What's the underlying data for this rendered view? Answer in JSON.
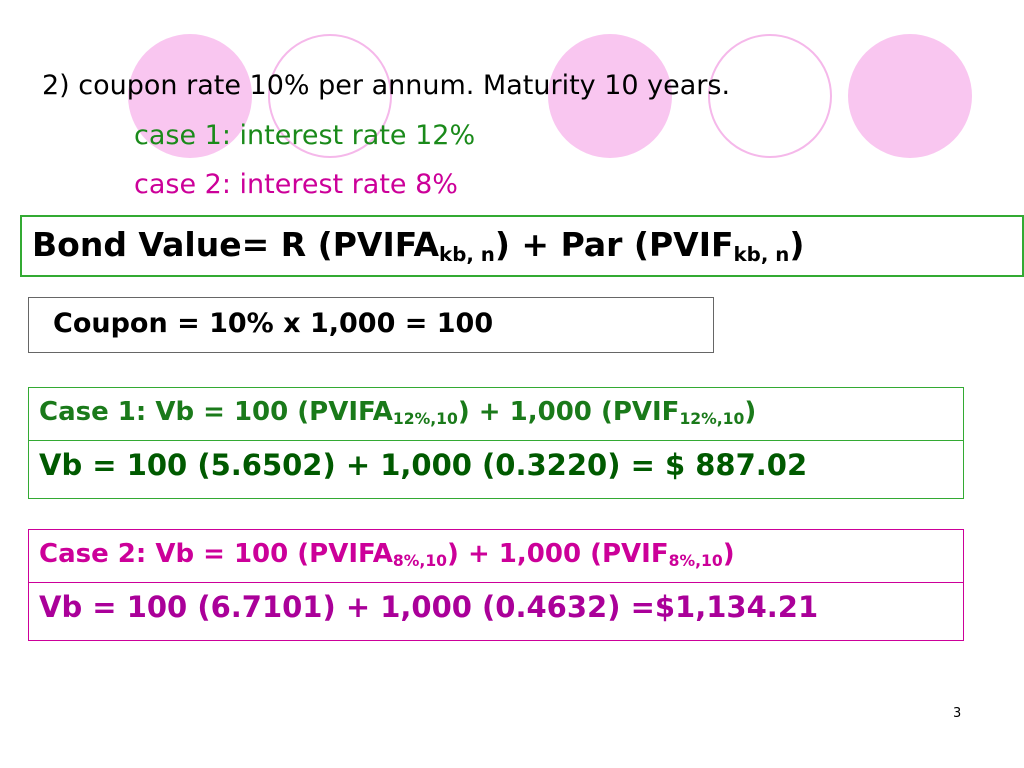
{
  "intro": {
    "line": "2) coupon rate 10% per annum. Maturity 10 years.",
    "case1": "case 1: interest rate 12%",
    "case2": "case 2: interest rate 8%"
  },
  "bond_value": {
    "text1": "Bond Value= R (PVIFA",
    "sub1": "kb, n",
    "text2": ") + Par (PVIF",
    "sub2": "kb, n",
    "text3": ")"
  },
  "coupon": "Coupon = 10% x 1,000 = 100",
  "case1": {
    "text1": "Case 1: Vb = 100 (PVIFA",
    "sub1": "12%,10",
    "text2": ") + 1,000 (PVIF",
    "sub2": "12%,10",
    "text3": ")",
    "result": "Vb = 100 (5.6502) + 1,000 (0.3220) = $ 887.02"
  },
  "case2": {
    "text1": "Case 2: Vb = 100 (PVIFA",
    "sub1": "8%,10",
    "text2": ") + 1,000 (PVIF",
    "sub2": "8%,10",
    "text3": ")",
    "result": "Vb = 100 (6.7101) + 1,000 (0.4632) =$1,134.21"
  },
  "page_number": "3"
}
